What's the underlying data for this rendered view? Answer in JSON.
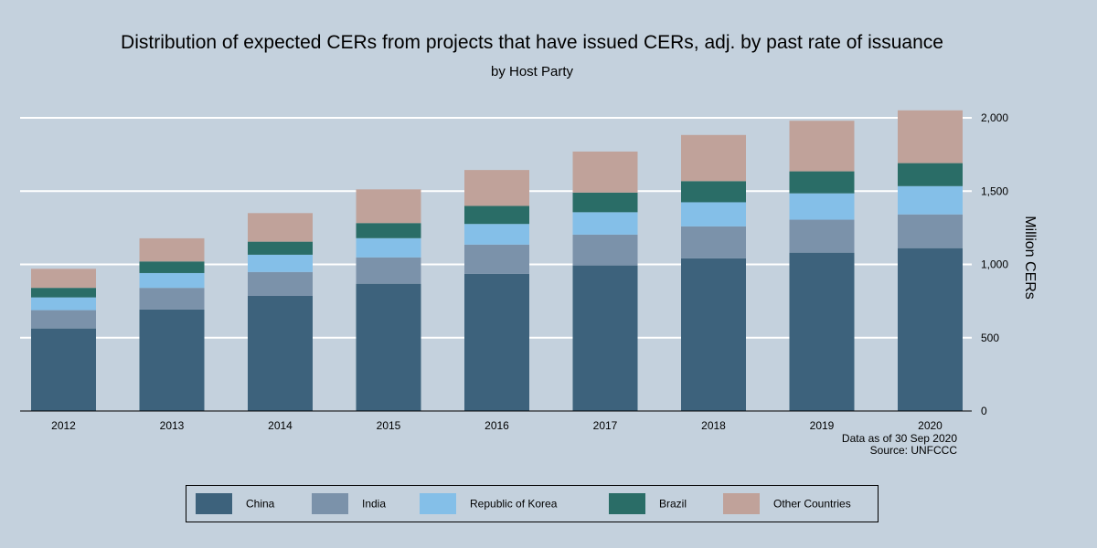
{
  "chart_data": {
    "type": "bar",
    "stacked": true,
    "title": "Distribution of expected CERs from projects that have issued CERs, adj. by past rate of issuance",
    "subtitle": "by Host Party",
    "xlabel": "",
    "ylabel": "Million CERs",
    "ylim": [
      0,
      2050
    ],
    "yticks": [
      0,
      500,
      1000,
      1500,
      2000
    ],
    "ytick_labels": [
      "0",
      "500",
      "1,000",
      "1,500",
      "2,000"
    ],
    "grid": true,
    "legend_position": "bottom",
    "categories": [
      "2012",
      "2013",
      "2014",
      "2015",
      "2016",
      "2017",
      "2018",
      "2019",
      "2020"
    ],
    "series": [
      {
        "name": "China",
        "color": "#3d627c",
        "values": [
          563,
          692,
          785,
          868,
          935,
          993,
          1041,
          1080,
          1111
        ]
      },
      {
        "name": "India",
        "color": "#7b92aa",
        "values": [
          125,
          148,
          163,
          180,
          200,
          210,
          218,
          225,
          230
        ]
      },
      {
        "name": "Republic of Korea",
        "color": "#84bfe8",
        "values": [
          87,
          101,
          118,
          131,
          141,
          153,
          165,
          180,
          193
        ]
      },
      {
        "name": "Brazil",
        "color": "#2a6d67",
        "values": [
          65,
          79,
          89,
          103,
          123,
          134,
          144,
          150,
          157
        ]
      },
      {
        "name": "Other Countries",
        "color": "#c0a29a",
        "values": [
          130,
          158,
          195,
          230,
          245,
          280,
          315,
          345,
          360
        ]
      }
    ],
    "annotations": [
      "Data as of 30 Sep 2020",
      "Source: UNFCCC"
    ]
  }
}
